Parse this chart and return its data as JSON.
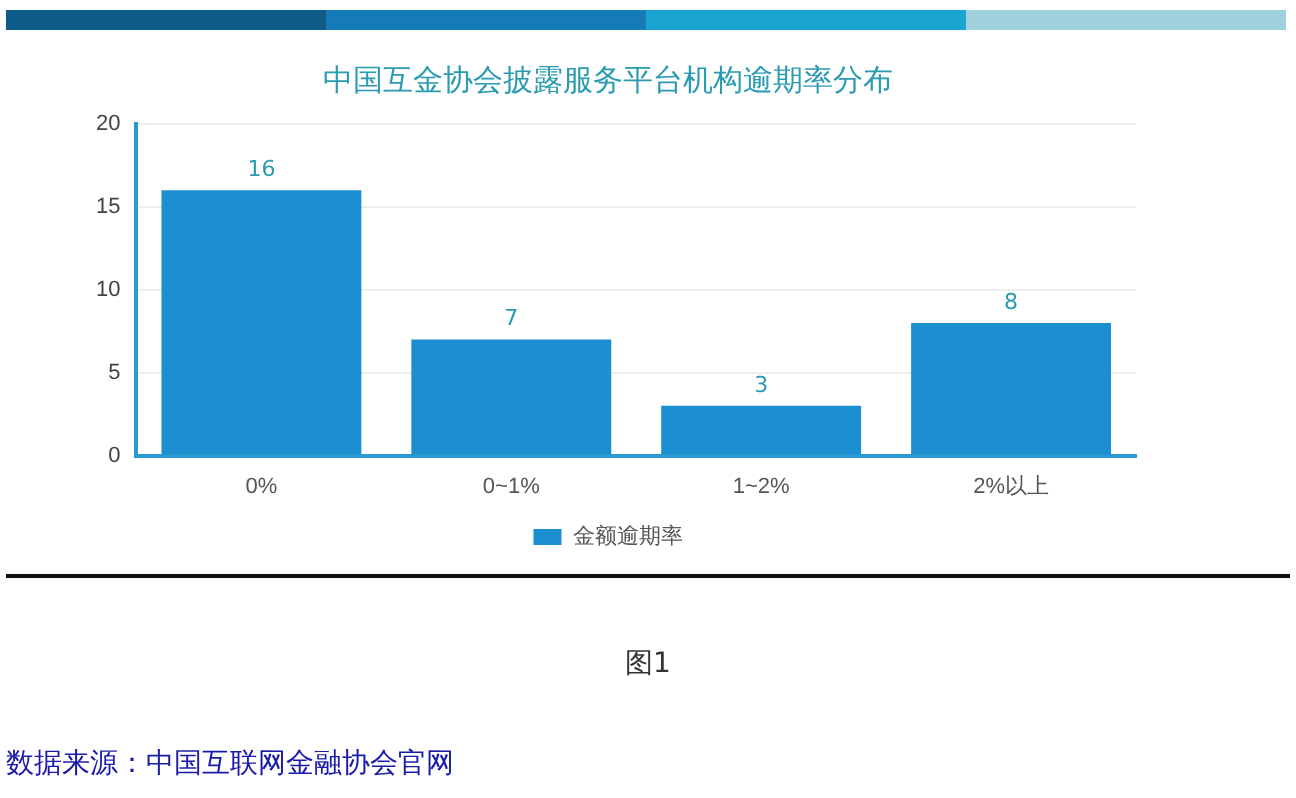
{
  "chart_data": {
    "type": "bar",
    "title": "中国互金协会披露服务平台机构逾期率分布",
    "categories": [
      "0%",
      "0~1%",
      "1~2%",
      "2%以上"
    ],
    "series": [
      {
        "name": "金额逾期率",
        "color": "#1b8fd0",
        "values": [
          16,
          7,
          3,
          8
        ]
      }
    ],
    "ylim": [
      0,
      20
    ],
    "yticks": [
      0,
      5,
      10,
      15,
      20
    ],
    "grid": "y",
    "legend": "bottom",
    "data_labels": true,
    "annotations": [
      "图1",
      "数据来源：中国互联网金融协会官网"
    ]
  }
}
